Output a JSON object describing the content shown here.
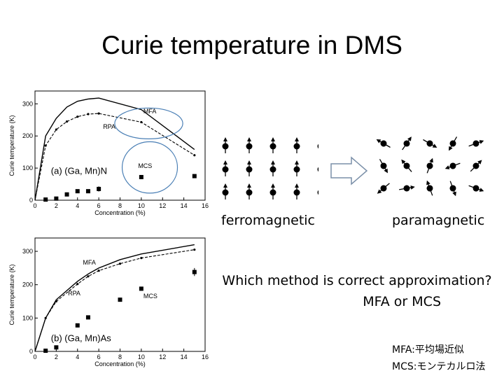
{
  "slide": {
    "title": "Curie temperature in DMS",
    "ferro_label": "ferromagnetic",
    "para_label": "paramagnetic",
    "question_line1": "Which method is correct approximation?",
    "question_line2": "MFA or MCS",
    "note_mfa": "MFA:平均場近似",
    "note_mcs": "MCS:モンテカルロ法"
  },
  "icons": {
    "ferro": "spin-up-arrows-icon",
    "para": "random-spin-arrows-icon",
    "transition": "hollow-right-arrow-icon"
  },
  "colors": {
    "highlight_ellipse": "#4a7fb5",
    "ink": "#000000"
  },
  "chart_data": [
    {
      "type": "line",
      "panel_label": "(a) (Ga, Mn)N",
      "xlabel": "Concentration (%)",
      "ylabel": "Curie temperature (K)",
      "xlim": [
        0,
        16
      ],
      "ylim": [
        0,
        340
      ],
      "xticks": [
        0,
        2,
        4,
        6,
        8,
        10,
        12,
        14,
        16
      ],
      "yticks": [
        0,
        100,
        200,
        300
      ],
      "series": [
        {
          "name": "MFA",
          "style": "solid",
          "x": [
            0,
            1,
            2,
            3,
            4,
            5,
            6,
            10,
            15
          ],
          "y": [
            0,
            200,
            255,
            290,
            308,
            315,
            318,
            282,
            158
          ]
        },
        {
          "name": "RPA",
          "style": "dashed",
          "x": [
            0,
            1,
            2,
            3,
            4,
            5,
            6,
            10,
            15
          ],
          "y": [
            0,
            170,
            220,
            245,
            260,
            268,
            270,
            243,
            140
          ]
        },
        {
          "name": "MCS",
          "style": "points",
          "x": [
            1,
            2,
            3,
            4,
            5,
            6,
            10,
            15
          ],
          "y": [
            2,
            5,
            18,
            28,
            28,
            35,
            72,
            75
          ],
          "err": [
            0,
            0,
            0,
            0,
            0,
            8,
            0,
            0
          ]
        }
      ],
      "annotations": [
        {
          "text": "MFA",
          "x": 10.2,
          "y": 270
        },
        {
          "text": "RPA",
          "x": 6.4,
          "y": 222
        },
        {
          "text": "MCS",
          "x": 9.7,
          "y": 100
        }
      ],
      "highlights": [
        {
          "label": "MFA",
          "cx": 10.7,
          "cy": 239,
          "rx": 3.2,
          "ry": 48
        },
        {
          "label": "MCS",
          "cx": 10.8,
          "cy": 102,
          "rx": 2.6,
          "ry": 80
        }
      ]
    },
    {
      "type": "line",
      "panel_label": "(b) (Ga, Mn)As",
      "xlabel": "Concentration (%)",
      "ylabel": "Curie temperature (K)",
      "xlim": [
        0,
        16
      ],
      "ylim": [
        0,
        340
      ],
      "xticks": [
        0,
        2,
        4,
        6,
        8,
        10,
        12,
        14,
        16
      ],
      "yticks": [
        0,
        100,
        200,
        300
      ],
      "series": [
        {
          "name": "MFA",
          "style": "solid",
          "x": [
            0,
            1,
            2,
            4,
            5,
            6,
            8,
            10,
            15
          ],
          "y": [
            0,
            100,
            155,
            210,
            232,
            250,
            275,
            292,
            320
          ]
        },
        {
          "name": "RPA",
          "style": "dashed",
          "x": [
            0,
            1,
            2,
            4,
            5,
            6,
            8,
            10,
            15
          ],
          "y": [
            0,
            100,
            150,
            202,
            225,
            242,
            263,
            280,
            305
          ]
        },
        {
          "name": "MCS",
          "style": "points",
          "x": [
            1,
            2,
            4,
            5,
            8,
            10,
            15
          ],
          "y": [
            2,
            12,
            78,
            102,
            155,
            188,
            238
          ],
          "err": [
            0,
            6,
            6,
            0,
            0,
            6,
            12
          ]
        }
      ],
      "annotations": [
        {
          "text": "MFA",
          "x": 4.5,
          "y": 260
        },
        {
          "text": "RPA",
          "x": 3.1,
          "y": 168
        },
        {
          "text": "MCS",
          "x": 10.2,
          "y": 160
        }
      ],
      "highlights": []
    }
  ]
}
